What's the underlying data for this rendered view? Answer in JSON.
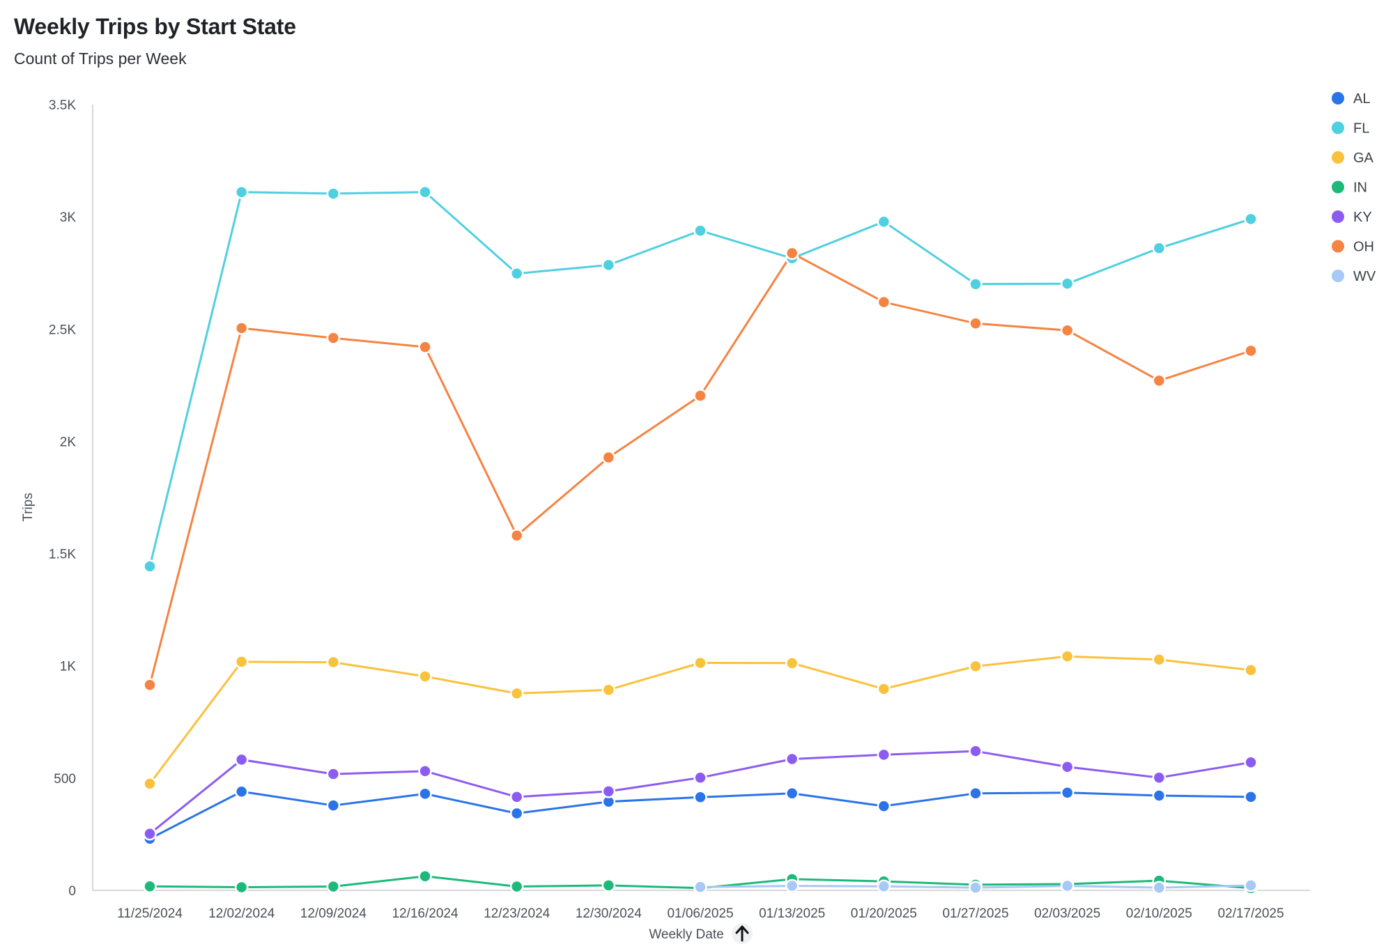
{
  "header": {
    "title": "Weekly Trips by Start State",
    "subtitle": "Count of Trips per Week"
  },
  "sort_icon": "arrow-up-icon",
  "chart_data": {
    "type": "line",
    "title": "Weekly Trips by Start State",
    "subtitle": "Count of Trips per Week",
    "xlabel": "Weekly Date",
    "ylabel": "Trips",
    "categories": [
      "11/25/2024",
      "12/02/2024",
      "12/09/2024",
      "12/16/2024",
      "12/23/2024",
      "12/30/2024",
      "01/06/2025",
      "01/13/2025",
      "01/20/2025",
      "01/27/2025",
      "02/03/2025",
      "02/10/2025",
      "02/17/2025"
    ],
    "ylim": [
      0,
      3500
    ],
    "y_ticks": [
      0,
      500,
      1000,
      1500,
      2000,
      2500,
      3000,
      3500
    ],
    "y_tick_labels": [
      "0",
      "500",
      "1K",
      "1.5K",
      "2K",
      "2.5K",
      "3K",
      "3.5K"
    ],
    "grid": false,
    "legend_position": "top-right",
    "series": [
      {
        "name": "AL",
        "color": "#2b73e8",
        "values": [
          230,
          440,
          378,
          430,
          343,
          395,
          415,
          432,
          375,
          432,
          435,
          422,
          416
        ]
      },
      {
        "name": "FL",
        "color": "#4fd0e0",
        "values": [
          1443,
          3110,
          3103,
          3110,
          2747,
          2785,
          2938,
          2815,
          2978,
          2700,
          2702,
          2860,
          2990
        ]
      },
      {
        "name": "GA",
        "color": "#f9c23c",
        "values": [
          475,
          1018,
          1016,
          953,
          877,
          893,
          1013,
          1012,
          897,
          998,
          1042,
          1028,
          981
        ]
      },
      {
        "name": "IN",
        "color": "#1db97a",
        "values": [
          18,
          14,
          17,
          63,
          17,
          22,
          10,
          50,
          40,
          25,
          28,
          43,
          10
        ]
      },
      {
        "name": "KY",
        "color": "#8c5cf0",
        "values": [
          252,
          582,
          518,
          531,
          416,
          441,
          502,
          585,
          604,
          620,
          550,
          502,
          570
        ]
      },
      {
        "name": "OH",
        "color": "#f58342",
        "values": [
          915,
          2504,
          2460,
          2420,
          1580,
          1928,
          2203,
          2838,
          2620,
          2525,
          2494,
          2270,
          2403
        ]
      },
      {
        "name": "WV",
        "color": "#a8c8f5",
        "values": [
          null,
          null,
          null,
          null,
          null,
          null,
          15,
          20,
          18,
          12,
          20,
          12,
          22
        ]
      }
    ]
  }
}
